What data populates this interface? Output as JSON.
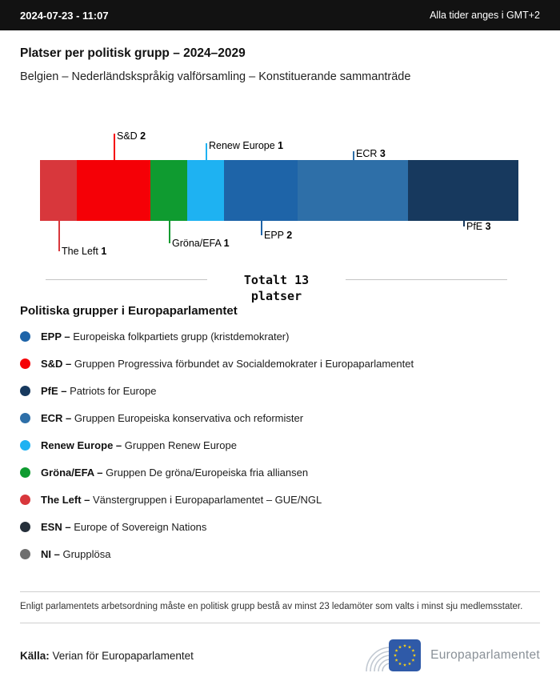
{
  "header": {
    "datetime": "2024-07-23 - 11:07",
    "timezone_note": "Alla tider anges i GMT+2"
  },
  "title": "Platser per politisk grupp – 2024–2029",
  "subtitle": "Belgien – Nederländskspråkig valförsamling – Konstituerande sammanträde",
  "chart_data": {
    "type": "bar",
    "orientation": "horizontal-stacked",
    "title": "Platser per politisk grupp – 2024–2029",
    "total": 13,
    "categories": [
      "The Left",
      "S&D",
      "Gröna/EFA",
      "Renew Europe",
      "EPP",
      "ECR",
      "PfE"
    ],
    "values": [
      1,
      2,
      1,
      1,
      2,
      3,
      3
    ],
    "colors": [
      "#d8373c",
      "#f50006",
      "#0f9b30",
      "#1eb2f2",
      "#1e64a8",
      "#2e6fa8",
      "#17395e"
    ],
    "callouts": [
      {
        "name": "The Left",
        "side": "below",
        "label_top": 158
      },
      {
        "name": "S&D",
        "side": "above",
        "label_top": 14
      },
      {
        "name": "Gröna/EFA",
        "side": "below",
        "label_top": 148
      },
      {
        "name": "Renew Europe",
        "side": "above",
        "label_top": 26
      },
      {
        "name": "EPP",
        "side": "below",
        "label_top": 138
      },
      {
        "name": "ECR",
        "side": "above",
        "label_top": 36
      },
      {
        "name": "PfE",
        "side": "below",
        "label_top": 127
      }
    ]
  },
  "totals": {
    "line1": "Totalt 13",
    "line2": "platser"
  },
  "legend": {
    "heading": "Politiska grupper i Europaparlamentet",
    "items": [
      {
        "abbr": "EPP",
        "name": "Europeiska folkpartiets grupp (kristdemokrater)",
        "color": "#1e64a8"
      },
      {
        "abbr": "S&D",
        "name": "Gruppen Progressiva förbundet av Socialdemokrater i Europaparlamentet",
        "color": "#f50006"
      },
      {
        "abbr": "PfE",
        "name": "Patriots for Europe",
        "color": "#17395e"
      },
      {
        "abbr": "ECR",
        "name": "Gruppen Europeiska konservativa och reformister",
        "color": "#2e6fa8"
      },
      {
        "abbr": "Renew Europe",
        "name": "Gruppen Renew Europe",
        "color": "#1eb2f2"
      },
      {
        "abbr": "Gröna/EFA",
        "name": "Gruppen De gröna/Europeiska fria alliansen",
        "color": "#0f9b30"
      },
      {
        "abbr": "The Left",
        "name": "Vänstergruppen i Europaparlamentet – GUE/NGL",
        "color": "#d8373c"
      },
      {
        "abbr": "ESN",
        "name": "Europe of Sovereign Nations",
        "color": "#252f3a"
      },
      {
        "abbr": "NI",
        "name": "Grupplösa",
        "color": "#6e6e6e"
      }
    ]
  },
  "note": "Enligt parlamentets arbetsordning måste en politisk grupp bestå av minst 23 ledamöter som valts i minst sju medlemsstater.",
  "source": {
    "label": "Källa:",
    "text": "Verian för Europaparlamentet"
  },
  "logo": {
    "text": "Europaparlamentet"
  }
}
